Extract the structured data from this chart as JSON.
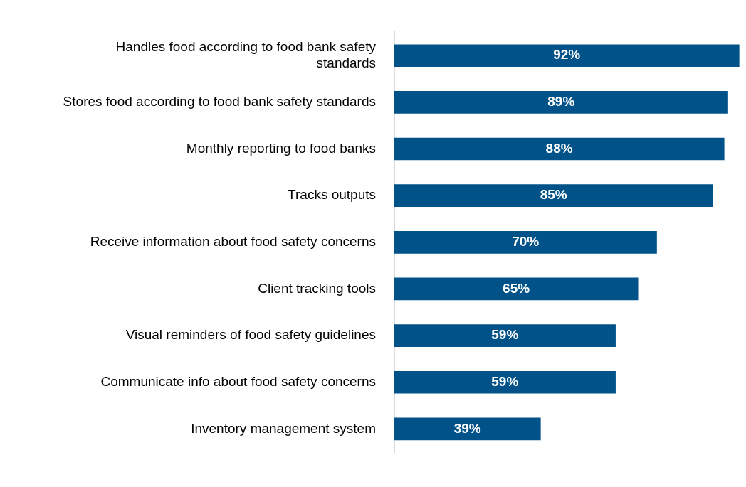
{
  "chart_data": {
    "type": "bar",
    "orientation": "horizontal",
    "categories": [
      "Handles food according to food bank safety standards",
      "Stores food according to food bank safety standards",
      "Monthly reporting to food banks",
      "Tracks outputs",
      "Receive information about food safety concerns",
      "Client tracking tools",
      "Visual reminders of food safety guidelines",
      "Communicate info about food safety concerns",
      "Inventory management system"
    ],
    "values": [
      92,
      89,
      88,
      85,
      70,
      65,
      59,
      59,
      39
    ],
    "value_labels": [
      "92%",
      "89%",
      "88%",
      "85%",
      "70%",
      "65%",
      "59%",
      "59%",
      "39%"
    ],
    "color": "#005288"
  }
}
